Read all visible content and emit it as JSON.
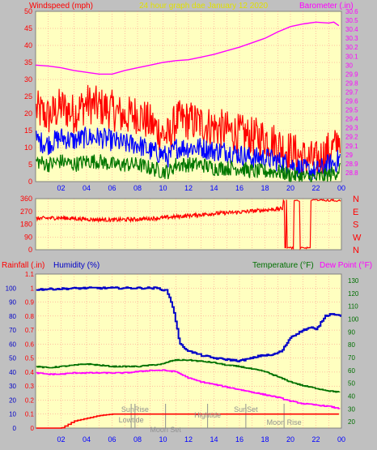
{
  "colors": {
    "background": "#c0c0c0",
    "plot_bg": "#ffffc0",
    "grid": "#ff8080",
    "wind_gust": "#ff0000",
    "wind_avg": "#0000ff",
    "wind_min": "#007700",
    "barometer": "#ff00ff",
    "direction": "#ff0000",
    "humidity": "#0000c8",
    "temperature": "#007000",
    "dewpoint": "#ff00ff",
    "rainfall": "#ff0000",
    "events": "#909090",
    "title": "#e0e000"
  },
  "chart_data": [
    {
      "type": "line",
      "title": "24 hour graph dae   January 12 2020",
      "ylabel": "Windspeed (mph)",
      "y2label": "Barometer (.in)",
      "x_ticks": [
        "02",
        "04",
        "06",
        "08",
        "10",
        "12",
        "14",
        "16",
        "18",
        "20",
        "22",
        "00"
      ],
      "ylim": [
        0,
        50
      ],
      "y_ticks": [
        "0",
        "5",
        "10",
        "15",
        "20",
        "25",
        "30",
        "35",
        "40",
        "45",
        "50"
      ],
      "y2lim": [
        28.7,
        30.6
      ],
      "y2_ticks": [
        "28.8",
        "28.9",
        "29",
        "29.1",
        "29.2",
        "29.3",
        "29.4",
        "29.5",
        "29.6",
        "29.7",
        "29.8",
        "29.9",
        "30",
        "30.1",
        "30.2",
        "30.3",
        "30.4",
        "30.5",
        "30.6"
      ],
      "grid": true,
      "series": [
        {
          "role": "gust",
          "x": [
            0.1,
            1,
            2,
            3,
            4,
            5,
            6,
            7,
            8,
            9,
            10,
            10.5,
            11,
            12,
            13,
            14,
            15,
            16,
            17,
            18,
            19,
            20,
            21,
            22,
            23,
            23.5,
            23.9
          ],
          "values": [
            21,
            19,
            22,
            20,
            23,
            22,
            21,
            19,
            20,
            17,
            14,
            13,
            18,
            18,
            17,
            16,
            15,
            14,
            13,
            13,
            11,
            9,
            7,
            6,
            9,
            10,
            14
          ]
        },
        {
          "role": "average",
          "x": [
            0.1,
            1,
            2,
            3,
            4,
            5,
            6,
            7,
            8,
            9,
            10,
            10.5,
            11,
            12,
            13,
            14,
            15,
            16,
            17,
            18,
            19,
            20,
            21,
            22,
            23,
            23.5,
            23.9
          ],
          "values": [
            12,
            11,
            13,
            12,
            13,
            13,
            12,
            11,
            11,
            9,
            8,
            7,
            10,
            10,
            10,
            9,
            9,
            8,
            7,
            7,
            6,
            5,
            3.5,
            3,
            5,
            5.5,
            7
          ]
        },
        {
          "role": "minimum",
          "x": [
            0.1,
            1,
            2,
            3,
            4,
            5,
            6,
            7,
            8,
            9,
            10,
            10.5,
            11,
            12,
            13,
            14,
            15,
            16,
            17,
            18,
            19,
            20,
            21,
            22,
            23,
            23.5,
            23.9
          ],
          "values": [
            6,
            5,
            6,
            5,
            6,
            6,
            5,
            5,
            5,
            4,
            3,
            3,
            5,
            5,
            5,
            4,
            4,
            4,
            3,
            3,
            3,
            2,
            1.5,
            1,
            2,
            2.5,
            4
          ]
        },
        {
          "role": "barometer",
          "axis": "y2",
          "x": [
            0,
            1,
            2,
            3,
            4,
            5,
            6,
            7,
            8,
            9,
            10,
            11,
            12,
            13,
            14,
            15,
            16,
            17,
            18,
            19,
            20,
            21,
            22,
            23,
            23.4,
            23.8
          ],
          "values": [
            30.0,
            29.99,
            29.97,
            29.94,
            29.92,
            29.9,
            29.9,
            29.94,
            29.97,
            30.0,
            30.03,
            30.05,
            30.06,
            30.09,
            30.12,
            30.16,
            30.2,
            30.25,
            30.3,
            30.37,
            30.43,
            30.46,
            30.48,
            30.47,
            30.48,
            30.44
          ]
        }
      ]
    },
    {
      "type": "line",
      "ylabel": "",
      "ylim": [
        0,
        360
      ],
      "y_ticks": [
        "0",
        "90",
        "180",
        "270",
        "360"
      ],
      "y2_ticks": [
        "N",
        "W",
        "S",
        "E",
        "N"
      ],
      "grid": true,
      "series": [
        {
          "role": "wind_direction",
          "x": [
            0,
            2,
            4,
            6,
            8,
            10,
            12,
            14,
            16,
            18,
            19.5
          ],
          "values": [
            220,
            225,
            215,
            210,
            215,
            225,
            240,
            255,
            265,
            280,
            290
          ]
        }
      ]
    },
    {
      "type": "line",
      "ylabel": "Rainfall (.in)",
      "ylabel2": "Humidity (%)",
      "y2label": "Temperature (°F)",
      "y2label2": "Dew Point (°F)",
      "ylim": [
        0,
        1.1
      ],
      "y_ticks": [
        "0",
        "0.1",
        "0.2",
        "0.3",
        "0.4",
        "0.5",
        "0.6",
        "0.7",
        "0.8",
        "0.9",
        "1",
        "1.1"
      ],
      "humidity_ticks": [
        "0",
        "10",
        "20",
        "30",
        "40",
        "50",
        "60",
        "70",
        "80",
        "90",
        "100"
      ],
      "y2lim": [
        15,
        135
      ],
      "y2_ticks": [
        "20",
        "30",
        "40",
        "50",
        "60",
        "70",
        "80",
        "90",
        "100",
        "110",
        "120",
        "130"
      ],
      "x_ticks": [
        "02",
        "04",
        "06",
        "08",
        "10",
        "12",
        "14",
        "16",
        "18",
        "20",
        "22",
        "00"
      ],
      "grid": true,
      "events": [
        "SunRise",
        "Lowtide",
        "Moon Set",
        "Hightide",
        "SunSet",
        "Moon Rise"
      ],
      "event_x": [
        7.8,
        7.5,
        10.2,
        13.5,
        16.5,
        19.5
      ],
      "series": [
        {
          "role": "humidity",
          "x": [
            0,
            2,
            4,
            6,
            8,
            9.5,
            10.3,
            10.8,
            11.3,
            12,
            13,
            14,
            15,
            16,
            17,
            17.7,
            18.5,
            19.3,
            20,
            21,
            21.6,
            22,
            22.7,
            23.3,
            23.9
          ],
          "values": [
            99,
            99.5,
            100,
            100,
            100,
            100,
            98,
            85,
            60,
            55,
            52,
            50,
            49,
            48,
            50,
            52,
            52,
            55,
            65,
            70,
            72,
            70,
            80,
            82,
            80
          ]
        },
        {
          "role": "temperature",
          "axis": "y2",
          "x": [
            0,
            1,
            2,
            3,
            4,
            5,
            6,
            7,
            8,
            9,
            10,
            10.5,
            11,
            12,
            13,
            14,
            15,
            16,
            17,
            18,
            19,
            20,
            21,
            22,
            23,
            23.9
          ],
          "values": [
            63,
            62,
            63,
            64,
            65,
            64,
            63,
            63,
            63,
            64,
            65,
            67,
            68,
            68,
            67,
            66,
            64,
            63,
            61,
            59,
            55,
            51,
            48,
            46,
            44,
            43
          ]
        },
        {
          "role": "dewpoint",
          "axis": "y2",
          "x": [
            0,
            1,
            2,
            3,
            4,
            5,
            6,
            7,
            8,
            9,
            10,
            11,
            12,
            13,
            14,
            15,
            16,
            17,
            18,
            19,
            20,
            21,
            22,
            23,
            23.9
          ],
          "values": [
            58,
            57,
            57,
            58,
            58,
            58,
            58,
            58,
            59,
            60,
            60,
            59,
            54,
            51,
            49,
            47,
            45,
            43,
            41,
            39,
            36,
            34,
            33,
            32,
            30
          ]
        },
        {
          "role": "rainfall",
          "x": [
            0,
            2,
            3,
            4,
            5,
            6,
            7,
            8,
            9,
            10,
            11,
            12,
            14,
            16,
            18,
            20,
            22,
            23,
            23.8,
            23.9
          ],
          "values": [
            0,
            0,
            0.05,
            0.07,
            0.09,
            0.1,
            0.1,
            0.1,
            0.1,
            0.1,
            0.1,
            0.1,
            0.1,
            0.1,
            0.1,
            0.1,
            0.1,
            0.1,
            0.1,
            0
          ]
        }
      ]
    }
  ]
}
